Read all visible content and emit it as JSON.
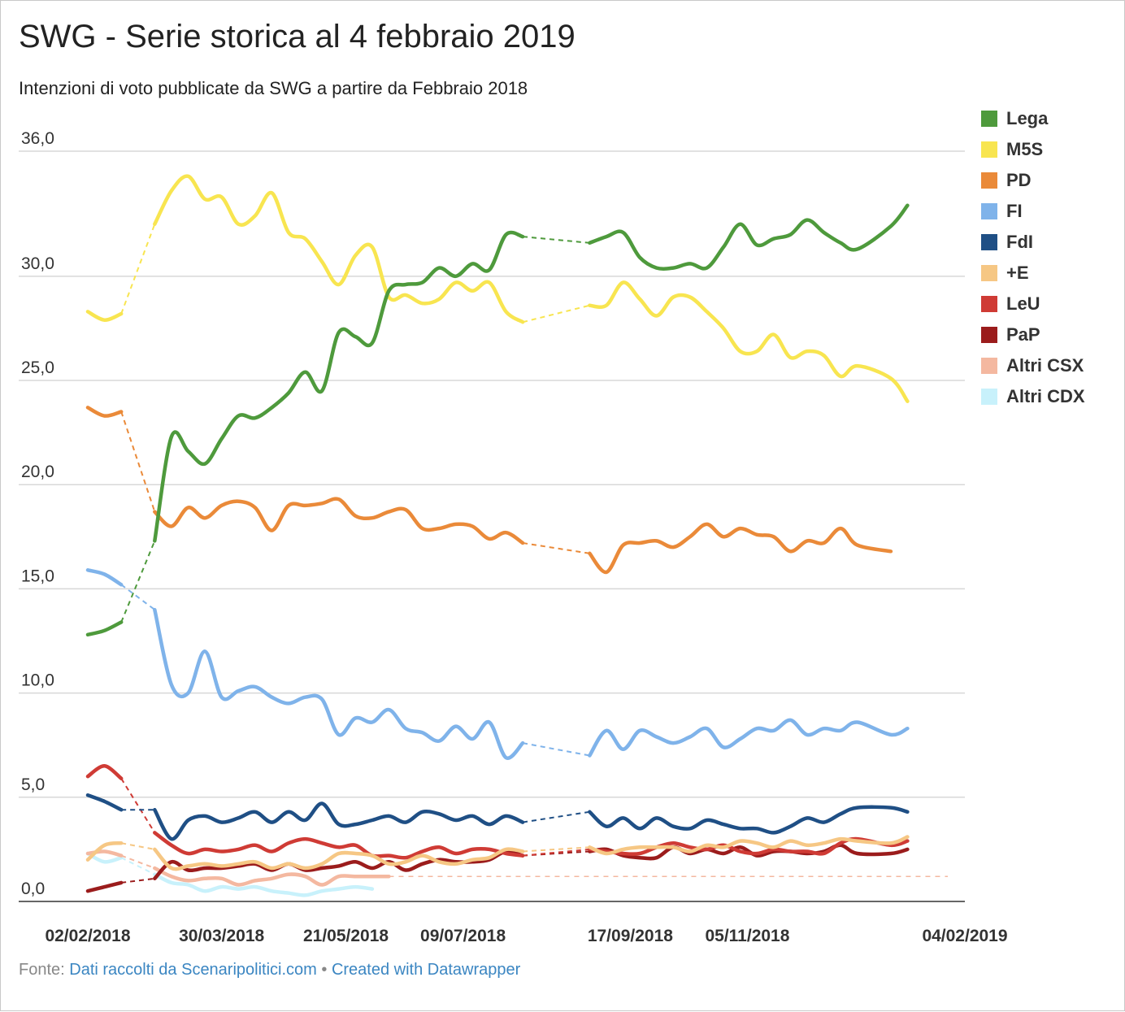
{
  "title": "SWG - Serie storica al 4 febbraio 2019",
  "subtitle": "Intenzioni di voto pubblicate da SWG a partire da Febbraio 2018",
  "footer": {
    "prefix": "Fonte: ",
    "source": "Dati raccolti da Scenaripolitici.com",
    "separator": " • ",
    "credit": "Created with Datawrapper"
  },
  "chart_data": {
    "type": "line",
    "title": "SWG - Serie storica al 4 febbraio 2019",
    "subtitle": "Intenzioni di voto pubblicate da SWG a partire da Febbraio 2018",
    "xlabel": "",
    "ylabel": "",
    "ylim": [
      0,
      36
    ],
    "xlim": [
      "2018-02-02",
      "2019-02-04"
    ],
    "y_ticks": [
      {
        "value": 0,
        "label": "0,0"
      },
      {
        "value": 5,
        "label": "5,0"
      },
      {
        "value": 10,
        "label": "10,0"
      },
      {
        "value": 15,
        "label": "15,0"
      },
      {
        "value": 20,
        "label": "20,0"
      },
      {
        "value": 25,
        "label": "25,0"
      },
      {
        "value": 30,
        "label": "30,0"
      },
      {
        "value": 36,
        "label": "36,0"
      }
    ],
    "x_ticks": [
      {
        "date": "2018-02-02",
        "label": "02/02/2018"
      },
      {
        "date": "2018-03-30",
        "label": "30/03/2018"
      },
      {
        "date": "2018-05-21",
        "label": "21/05/2018"
      },
      {
        "date": "2018-07-09",
        "label": "09/07/2018"
      },
      {
        "date": "2018-09-17",
        "label": "17/09/2018"
      },
      {
        "date": "2018-11-05",
        "label": "05/11/2018"
      },
      {
        "date": "2019-02-04",
        "label": "04/02/2019"
      }
    ],
    "grid": true,
    "legend_position": "right",
    "x": [
      "2018-02-02",
      "2018-02-09",
      "2018-02-16",
      "2018-03-02",
      "2018-03-09",
      "2018-03-16",
      "2018-03-23",
      "2018-03-30",
      "2018-04-06",
      "2018-04-13",
      "2018-04-20",
      "2018-04-27",
      "2018-05-04",
      "2018-05-11",
      "2018-05-18",
      "2018-05-25",
      "2018-06-01",
      "2018-06-08",
      "2018-06-15",
      "2018-06-22",
      "2018-06-29",
      "2018-07-06",
      "2018-07-13",
      "2018-07-20",
      "2018-07-27",
      "2018-08-03",
      "2018-08-31",
      "2018-09-07",
      "2018-09-14",
      "2018-09-21",
      "2018-09-28",
      "2018-10-05",
      "2018-10-12",
      "2018-10-19",
      "2018-10-26",
      "2018-11-02",
      "2018-11-09",
      "2018-11-16",
      "2018-11-23",
      "2018-11-30",
      "2018-12-07",
      "2018-12-14",
      "2018-12-21",
      "2019-01-04",
      "2019-01-11",
      "2019-01-18",
      "2019-01-25",
      "2019-02-04"
    ],
    "gaps": [
      {
        "from": "2018-02-16",
        "to": "2018-03-02"
      },
      {
        "from": "2018-08-03",
        "to": "2018-08-31"
      }
    ],
    "series": [
      {
        "name": "Lega",
        "color": "#4e9a3c",
        "values": [
          12.8,
          13.0,
          13.4,
          17.3,
          22.3,
          21.6,
          21.0,
          22.2,
          23.3,
          23.2,
          23.7,
          24.4,
          25.4,
          24.5,
          27.3,
          27.1,
          26.8,
          29.3,
          29.6,
          29.7,
          30.4,
          30.0,
          30.6,
          30.3,
          32.0,
          31.9,
          31.6,
          31.9,
          32.1,
          30.9,
          30.4,
          30.4,
          30.6,
          30.4,
          31.4,
          32.5,
          31.5,
          31.8,
          32.0,
          32.7,
          32.1,
          31.6,
          31.3,
          32.4,
          33.4,
          null,
          null,
          null
        ],
        "labels_dummy": true
      },
      {
        "name": "M5S",
        "color": "#f8e550",
        "values": [
          28.3,
          27.9,
          28.2,
          32.5,
          34.1,
          34.8,
          33.7,
          33.8,
          32.5,
          32.9,
          34.0,
          32.1,
          31.8,
          30.7,
          29.6,
          31.0,
          31.4,
          29.0,
          29.1,
          28.7,
          28.9,
          29.7,
          29.3,
          29.7,
          28.3,
          27.8,
          28.6,
          28.6,
          29.7,
          28.9,
          28.1,
          29.0,
          29.0,
          28.3,
          27.5,
          26.4,
          26.4,
          27.2,
          26.1,
          26.4,
          26.2,
          25.2,
          25.7,
          25.1,
          24.0,
          null,
          null,
          null
        ]
      },
      {
        "name": "PD",
        "color": "#ea8a39",
        "values": [
          23.7,
          23.3,
          23.5,
          18.7,
          18.0,
          18.9,
          18.4,
          19.0,
          19.2,
          18.9,
          17.8,
          19.0,
          19.0,
          19.1,
          19.3,
          18.5,
          18.4,
          18.7,
          18.8,
          17.9,
          17.9,
          18.1,
          18.0,
          17.4,
          17.7,
          17.2,
          16.7,
          15.8,
          17.1,
          17.2,
          17.3,
          17.0,
          17.5,
          18.1,
          17.5,
          17.9,
          17.6,
          17.5,
          16.8,
          17.3,
          17.2,
          17.9,
          17.1,
          16.8,
          null,
          null,
          null,
          null
        ]
      },
      {
        "name": "FI",
        "color": "#7fb3ea",
        "values": [
          15.9,
          15.7,
          15.2,
          14.0,
          10.4,
          10.0,
          12.0,
          9.8,
          10.1,
          10.3,
          9.8,
          9.5,
          9.8,
          9.7,
          8.0,
          8.8,
          8.6,
          9.2,
          8.3,
          8.1,
          7.7,
          8.4,
          7.8,
          8.6,
          6.9,
          7.6,
          7.0,
          8.2,
          7.3,
          8.2,
          7.9,
          7.6,
          7.9,
          8.3,
          7.4,
          7.8,
          8.3,
          8.2,
          8.7,
          8.0,
          8.3,
          8.2,
          8.6,
          8.0,
          8.3,
          null,
          null,
          null
        ]
      },
      {
        "name": "FdI",
        "color": "#1f4f85",
        "values": [
          5.1,
          4.8,
          4.4,
          4.4,
          3.0,
          3.9,
          4.1,
          3.8,
          4.0,
          4.3,
          3.8,
          4.3,
          3.9,
          4.7,
          3.7,
          3.7,
          3.9,
          4.1,
          3.8,
          4.3,
          4.2,
          3.9,
          4.1,
          3.7,
          4.1,
          3.8,
          4.3,
          3.6,
          4.0,
          3.5,
          4.0,
          3.6,
          3.5,
          3.9,
          3.7,
          3.5,
          3.5,
          3.3,
          3.6,
          4.0,
          3.8,
          4.2,
          4.5,
          4.5,
          4.3,
          null,
          null,
          null
        ]
      },
      {
        "name": "+E",
        "color": "#f6c784",
        "values": [
          2.0,
          2.7,
          2.8,
          2.5,
          1.6,
          1.7,
          1.8,
          1.7,
          1.8,
          1.9,
          1.6,
          1.8,
          1.6,
          1.8,
          2.3,
          2.3,
          2.2,
          1.8,
          1.9,
          2.2,
          1.9,
          1.8,
          2.0,
          2.1,
          2.5,
          2.4,
          2.6,
          2.3,
          2.5,
          2.6,
          2.6,
          2.6,
          2.4,
          2.7,
          2.6,
          2.9,
          2.8,
          2.6,
          2.9,
          2.7,
          2.8,
          3.0,
          2.9,
          2.8,
          3.1,
          null,
          null,
          null
        ]
      },
      {
        "name": "LeU",
        "color": "#cf3b35",
        "values": [
          6.0,
          6.5,
          5.9,
          3.3,
          2.7,
          2.3,
          2.5,
          2.4,
          2.5,
          2.7,
          2.4,
          2.8,
          3.0,
          2.8,
          2.6,
          2.7,
          2.2,
          2.2,
          2.1,
          2.4,
          2.6,
          2.3,
          2.5,
          2.5,
          2.3,
          2.2,
          2.5,
          2.4,
          2.3,
          2.3,
          2.6,
          2.8,
          2.6,
          2.5,
          2.7,
          2.4,
          2.3,
          2.5,
          2.4,
          2.4,
          2.3,
          2.8,
          3.0,
          2.7,
          2.9,
          null,
          null,
          null
        ]
      },
      {
        "name": "PaP",
        "color": "#9b1c1c",
        "values": [
          0.5,
          0.7,
          0.9,
          1.1,
          1.9,
          1.5,
          1.6,
          1.6,
          1.7,
          1.8,
          1.5,
          1.8,
          1.5,
          1.6,
          1.7,
          1.9,
          1.6,
          1.9,
          1.5,
          1.8,
          2.0,
          1.9,
          1.9,
          2.0,
          2.4,
          2.2,
          2.4,
          2.5,
          2.2,
          2.1,
          2.1,
          2.6,
          2.3,
          2.5,
          2.3,
          2.6,
          2.2,
          2.4,
          2.4,
          2.3,
          2.4,
          2.7,
          2.3,
          2.3,
          2.5,
          null,
          null,
          null
        ]
      },
      {
        "name": "Altri CSX",
        "color": "#f4b8a0",
        "values": [
          2.3,
          2.4,
          2.2,
          1.6,
          1.2,
          1.0,
          1.1,
          1.1,
          0.8,
          1.0,
          1.1,
          1.3,
          1.2,
          0.8,
          1.2,
          1.2,
          1.2,
          1.2,
          null,
          null,
          null,
          null,
          null,
          null,
          null,
          null,
          null,
          null,
          null,
          null,
          null,
          null,
          null,
          null,
          null,
          null,
          null,
          null,
          null,
          null,
          null,
          null,
          null,
          null,
          null,
          null,
          null,
          null
        ]
      },
      {
        "name": "Altri CDX",
        "color": "#c8f1fb",
        "values": [
          2.3,
          1.9,
          2.1,
          1.3,
          0.9,
          0.8,
          0.5,
          0.7,
          0.6,
          0.7,
          0.5,
          0.4,
          0.3,
          0.5,
          0.6,
          0.7,
          0.6,
          null,
          null,
          null,
          null,
          null,
          null,
          null,
          null,
          null,
          null,
          null,
          null,
          null,
          null,
          null,
          null,
          null,
          null,
          null,
          null,
          null,
          null,
          null,
          null,
          null,
          null,
          null,
          null,
          null,
          null,
          null
        ]
      }
    ]
  }
}
